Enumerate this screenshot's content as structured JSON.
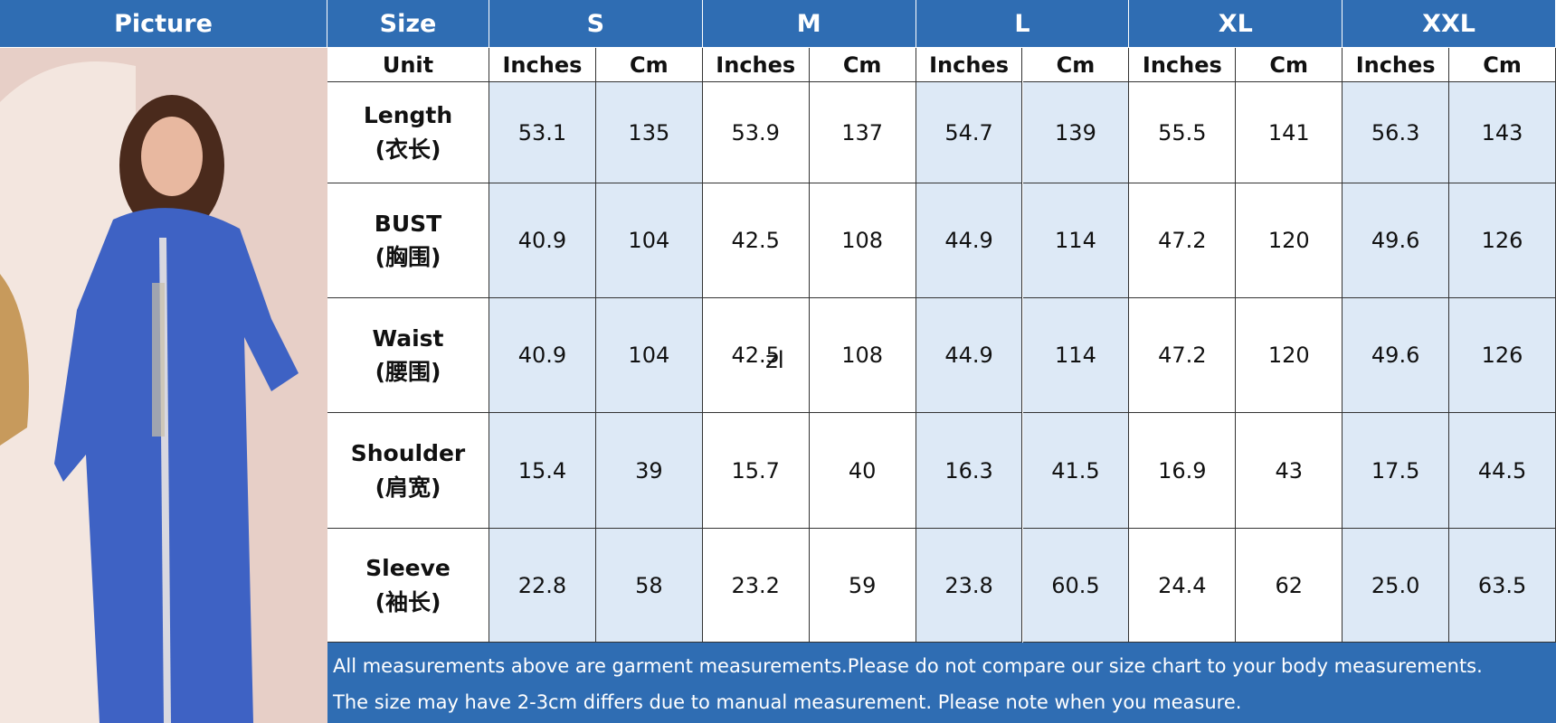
{
  "header": {
    "picture": "Picture",
    "size": "Size",
    "sizes": [
      "S",
      "M",
      "L",
      "XL",
      "XXL"
    ]
  },
  "unit_row": {
    "label": "Unit",
    "units": [
      "Inches",
      "Cm",
      "Inches",
      "Cm",
      "Inches",
      "Cm",
      "Inches",
      "Cm",
      "Inches",
      "Cm"
    ]
  },
  "rows": [
    {
      "label": "Length",
      "label_cn": "(衣长)",
      "values": [
        "53.1",
        "135",
        "53.9",
        "137",
        "54.7",
        "139",
        "55.5",
        "141",
        "56.3",
        "143"
      ]
    },
    {
      "label": "BUST",
      "label_cn": "(胸围)",
      "values": [
        "40.9",
        "104",
        "42.5",
        "108",
        "44.9",
        "114",
        "47.2",
        "120",
        "49.6",
        "126"
      ]
    },
    {
      "label": "Waist",
      "label_cn": "(腰围)",
      "values": [
        "40.9",
        "104",
        "42.5",
        "108",
        "44.9",
        "114",
        "47.2",
        "120",
        "49.6",
        "126"
      ]
    },
    {
      "label": "Shoulder",
      "label_cn": "(肩宽)",
      "values": [
        "15.4",
        "39",
        "15.7",
        "40",
        "16.3",
        "41.5",
        "16.9",
        "43",
        "17.5",
        "44.5"
      ]
    },
    {
      "label": "Sleeve",
      "label_cn": "(袖长)",
      "values": [
        "22.8",
        "58",
        "23.2",
        "59",
        "23.8",
        "60.5",
        "24.4",
        "62",
        "25.0",
        "63.5"
      ]
    }
  ],
  "stray_text": "zl",
  "notes": [
    "All measurements above are garment measurements.Please do not compare our size chart to your body measurements.",
    "The size may have 2-3cm differs due to manual measurement. Please note when you measure."
  ]
}
